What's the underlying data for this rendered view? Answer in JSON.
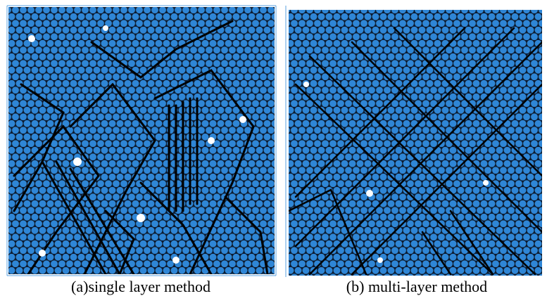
{
  "captions": [
    "(a)single layer method",
    "(b) multi-layer method"
  ]
}
